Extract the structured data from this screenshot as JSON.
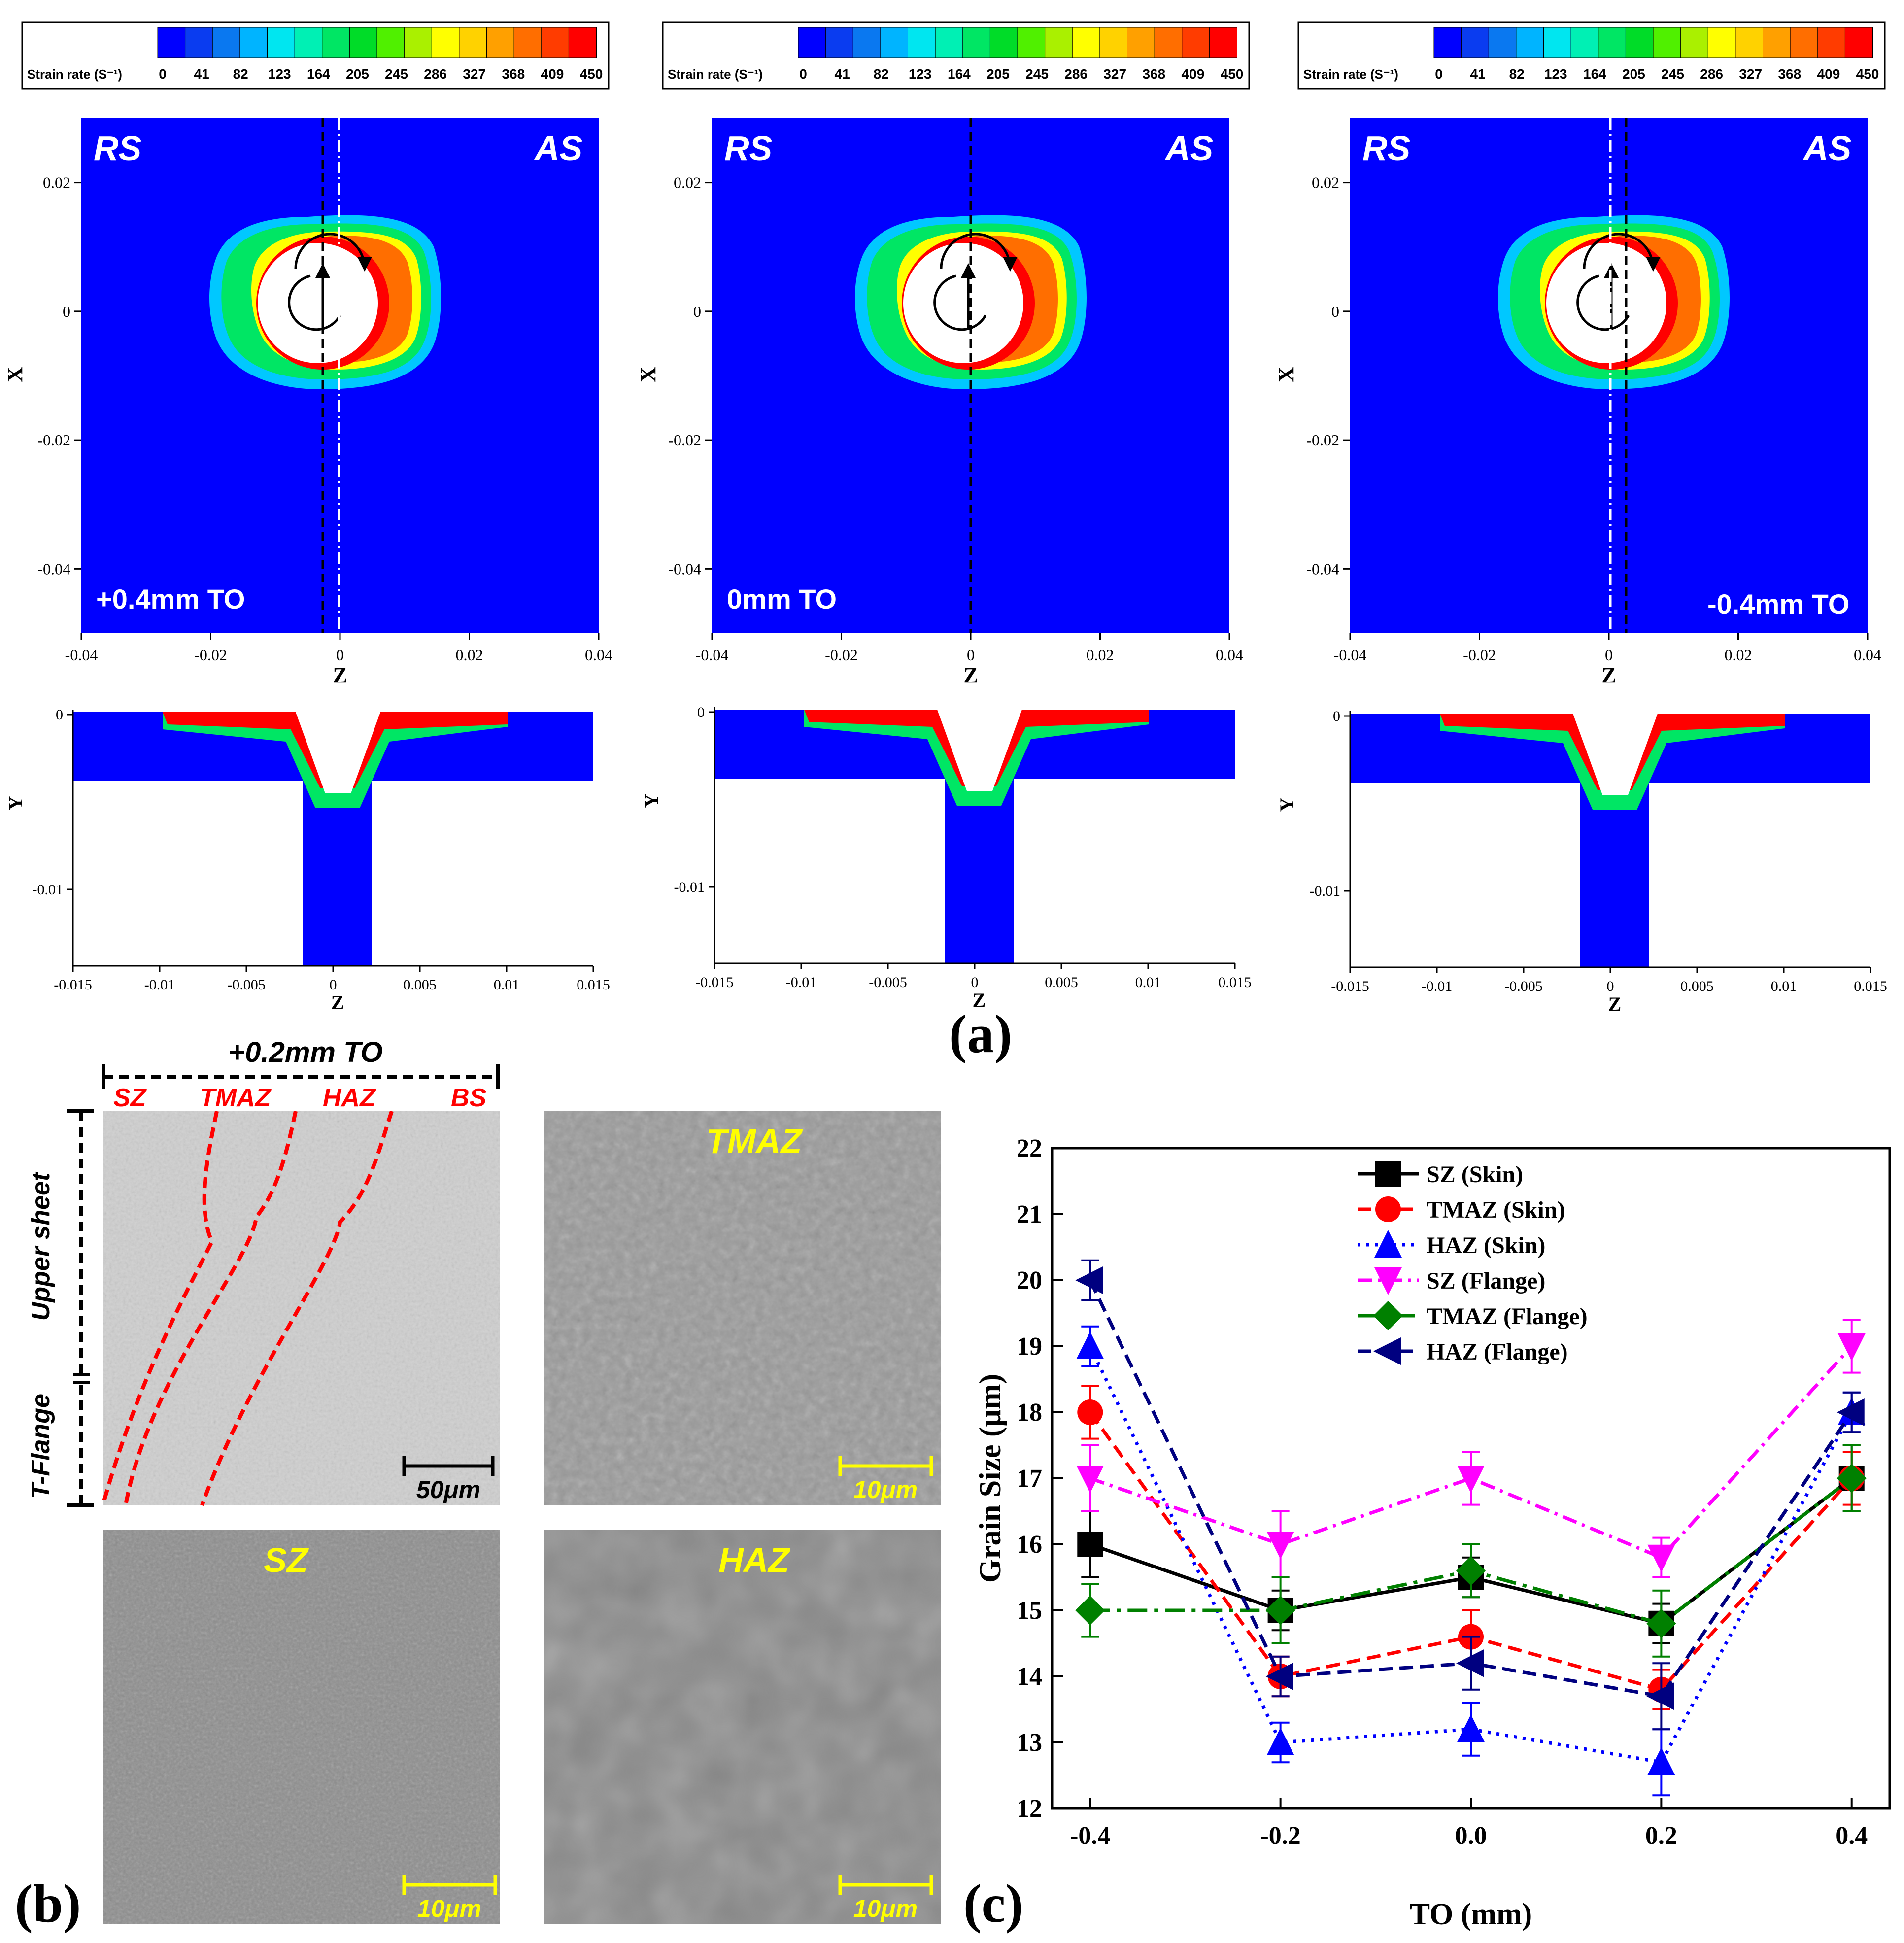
{
  "colors": {
    "strain_scale": [
      "#0000ff",
      "#0a3cf0",
      "#0a78f0",
      "#00b4ff",
      "#00e6f0",
      "#00f0b4",
      "#00e664",
      "#00dc28",
      "#50f000",
      "#aaf000",
      "#ffff00",
      "#ffd200",
      "#ffa000",
      "#ff6e00",
      "#ff3c00",
      "#ff0000"
    ],
    "grain_bg": "#a9a9a9"
  },
  "legend_bar": {
    "title": "Strain rate (S⁻¹)",
    "ticks": [
      "0",
      "41",
      "82",
      "123",
      "164",
      "205",
      "245",
      "286",
      "327",
      "368",
      "409",
      "450"
    ]
  },
  "panel_a": {
    "caption": "(a)",
    "side_left": "RS",
    "side_right": "AS",
    "top_x_ticks": [
      "-0.04",
      "-0.02",
      "0",
      "0.02",
      "0.04"
    ],
    "top_y_ticks": [
      "0.02",
      "0",
      "-0.02",
      "-0.04"
    ],
    "top_xlabel": "Z",
    "top_ylabel": "X",
    "bottom_x_ticks": [
      "-0.015",
      "-0.01",
      "-0.005",
      "0",
      "0.005",
      "0.01",
      "0.015"
    ],
    "bottom_y_ticks": [
      "0",
      "-0.01"
    ],
    "bottom_xlabel": "Z",
    "bottom_ylabel": "Y",
    "offsets": [
      {
        "label": "+0.4mm TO",
        "tool_offset_mm": 0.4
      },
      {
        "label": "0mm TO",
        "tool_offset_mm": 0.0
      },
      {
        "label": "-0.4mm TO",
        "tool_offset_mm": -0.4
      }
    ]
  },
  "panel_b": {
    "caption": "(b)",
    "header": "+0.2mm TO",
    "zones": [
      "SZ",
      "TMAZ",
      "HAZ",
      "BS"
    ],
    "upper_label": "Upper sheet",
    "lower_label": "T-Flange",
    "scale_50": "50μm",
    "scale_10": "10μm",
    "img_tmaz": "TMAZ",
    "img_sz": "SZ",
    "img_haz": "HAZ"
  },
  "panel_c": {
    "caption": "(c)"
  },
  "chart_data": {
    "type": "line",
    "xlabel": "TO (mm)",
    "ylabel": "Grain Size (μm)",
    "x": [
      -0.4,
      -0.2,
      0.0,
      0.2,
      0.4
    ],
    "x_ticks": [
      "-0.4",
      "-0.2",
      "0.0",
      "0.2",
      "0.4"
    ],
    "xlim": [
      -0.44,
      0.44
    ],
    "ylim": [
      12,
      22
    ],
    "y_ticks": [
      "12",
      "13",
      "14",
      "15",
      "16",
      "17",
      "18",
      "19",
      "20",
      "21",
      "22"
    ],
    "legend_position": "top-center",
    "series": [
      {
        "name": "SZ (Skin)",
        "values": [
          16.0,
          15.0,
          15.5,
          14.8,
          17.0
        ],
        "errors": [
          0.5,
          0.3,
          0.3,
          0.3,
          0.5
        ],
        "color": "#000000",
        "dash": "solid",
        "marker": "square"
      },
      {
        "name": "TMAZ (Skin)",
        "values": [
          18.0,
          14.0,
          14.6,
          13.8,
          17.0
        ],
        "errors": [
          0.4,
          0.3,
          0.4,
          0.3,
          0.4
        ],
        "color": "#ff0000",
        "dash": "dash",
        "marker": "circle"
      },
      {
        "name": "HAZ (Skin)",
        "values": [
          19.0,
          13.0,
          13.2,
          12.7,
          18.0
        ],
        "errors": [
          0.3,
          0.3,
          0.4,
          0.5,
          0.3
        ],
        "color": "#0000ff",
        "dash": "dot",
        "marker": "triangle-up"
      },
      {
        "name": "SZ (Flange)",
        "values": [
          17.0,
          16.0,
          17.0,
          15.8,
          19.0
        ],
        "errors": [
          0.5,
          0.5,
          0.4,
          0.3,
          0.4
        ],
        "color": "#ff00ff",
        "dash": "dashdot",
        "marker": "triangle-down"
      },
      {
        "name": "TMAZ (Flange)",
        "values": [
          15.0,
          15.0,
          15.6,
          14.8,
          17.0
        ],
        "errors": [
          0.4,
          0.5,
          0.4,
          0.5,
          0.5
        ],
        "color": "#008000",
        "dash": "dashdot2",
        "marker": "diamond"
      },
      {
        "name": "HAZ (Flange)",
        "values": [
          20.0,
          14.0,
          14.2,
          13.7,
          18.0
        ],
        "errors": [
          0.3,
          0.3,
          0.4,
          0.5,
          0.3
        ],
        "color": "#000080",
        "dash": "dash",
        "marker": "triangle-left"
      }
    ]
  }
}
